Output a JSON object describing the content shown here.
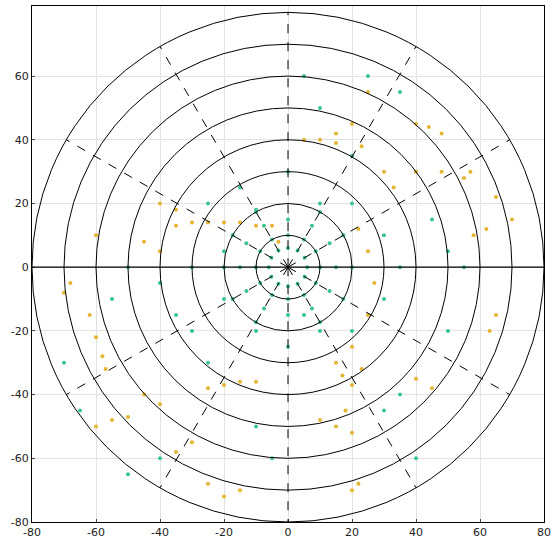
{
  "chart_data": {
    "type": "scatter",
    "xlim": [
      -80,
      80
    ],
    "ylim": [
      -80,
      82
    ],
    "xticks": [
      -80,
      -60,
      -40,
      -20,
      0,
      20,
      40,
      60,
      80
    ],
    "yticks": [
      -80,
      -60,
      -40,
      -20,
      0,
      20,
      40,
      60
    ],
    "grid": true,
    "marker": "dot",
    "ring_radii": [
      10,
      20,
      30,
      40,
      50,
      60,
      70,
      80
    ],
    "spoke_angles": [
      0,
      30,
      60,
      90,
      120,
      150,
      180,
      210,
      240,
      270,
      300,
      330
    ],
    "series": [
      {
        "color": "#3cc48f",
        "x": [
          6,
          5.2,
          3,
          0,
          -3,
          -5.2,
          -6,
          -5.2,
          -3,
          0,
          3,
          5.2,
          10,
          8.7,
          5,
          0,
          -5,
          -8.7,
          -10,
          -8.7,
          -5,
          0,
          5,
          8.7,
          15,
          13,
          7.5,
          0,
          -7.5,
          -13,
          -15,
          -13,
          -7.5,
          0,
          7.5,
          13,
          20,
          17.3,
          10,
          -10,
          -17.3,
          -20,
          -17.3,
          -10,
          10,
          17.3,
          -30,
          -25,
          -10,
          0,
          5,
          10,
          20,
          30,
          35,
          30,
          20,
          10,
          -10,
          -20,
          -30,
          -40,
          -50,
          -55,
          -35,
          -20,
          0,
          5,
          10,
          20,
          30,
          35,
          -40,
          -50,
          40,
          50,
          55,
          -70,
          -65,
          -10,
          -5,
          40,
          45,
          50,
          25,
          35,
          -15,
          -25
        ],
        "y": [
          0,
          3,
          5.2,
          6,
          5.2,
          3,
          0,
          -3,
          -5.2,
          -6,
          -5.2,
          -3,
          0,
          5,
          8.7,
          10,
          8.7,
          5,
          0,
          -5,
          -8.7,
          -10,
          -8.7,
          -5,
          0,
          7.5,
          13,
          15,
          13,
          7.5,
          0,
          -7.5,
          -13,
          -15,
          -13,
          -7.5,
          0,
          10,
          17.3,
          17.3,
          10,
          0,
          -10,
          -17.3,
          -17.3,
          -10,
          -20,
          -30,
          -20,
          -25,
          -15,
          -20,
          -20,
          -10,
          0,
          10,
          20,
          20,
          18,
          5,
          0,
          -5,
          0,
          -10,
          -15,
          -10,
          30,
          60,
          50,
          35,
          -45,
          -40,
          -60,
          -65,
          -60,
          -20,
          0,
          -30,
          -45,
          -50,
          -60,
          30,
          15,
          5,
          60,
          55,
          25,
          20
        ]
      },
      {
        "color": "#e6b42e",
        "x": [
          -35,
          -30,
          -25,
          -20,
          -15,
          -10,
          -5,
          -3,
          22,
          25,
          27,
          25,
          20,
          15,
          17,
          20,
          23,
          -25,
          -20,
          -15,
          -10,
          -40,
          -45,
          -62,
          -60,
          -58,
          -57,
          -68,
          -70,
          -60,
          -45,
          -40,
          10,
          15,
          20,
          23,
          15,
          40,
          40,
          48,
          48,
          44,
          55,
          57,
          58,
          62,
          65,
          63,
          40,
          45,
          -20,
          -15,
          -25,
          10,
          15,
          20,
          18,
          -60,
          -55,
          -50,
          -30,
          -35,
          20,
          22,
          -40,
          -35,
          25,
          5,
          65,
          70,
          30,
          33
        ],
        "y": [
          13,
          14,
          14,
          14,
          14,
          13,
          13,
          8,
          12,
          5,
          -5,
          -15,
          -25,
          -30,
          -34,
          -37,
          -32,
          -38,
          -37,
          -36,
          -36,
          -43,
          -40,
          -15,
          -22,
          -28,
          -32,
          -5,
          -8,
          10,
          8,
          5,
          40,
          42,
          45,
          38,
          39,
          45,
          30,
          30,
          42,
          44,
          28,
          30,
          10,
          12,
          -15,
          -20,
          -35,
          -38,
          -72,
          -70,
          -68,
          -48,
          -50,
          -52,
          -45,
          -50,
          -48,
          -47,
          -55,
          -58,
          -70,
          -68,
          20,
          18,
          55,
          40,
          22,
          15,
          30,
          25
        ]
      }
    ]
  }
}
